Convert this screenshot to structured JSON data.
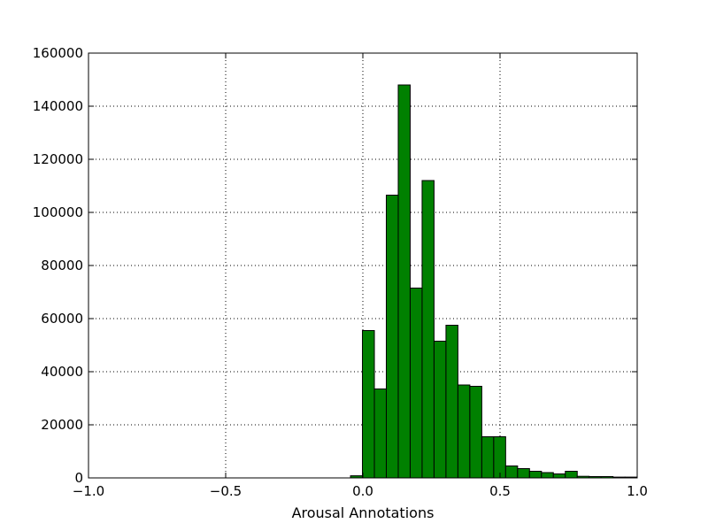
{
  "chart_data": {
    "type": "bar",
    "title": "",
    "xlabel": "Arousal Annotations",
    "ylabel": "",
    "xlim": [
      -1.0,
      1.0
    ],
    "ylim": [
      0,
      160000
    ],
    "x_ticks": [
      -1.0,
      -0.5,
      0.0,
      0.5,
      1.0
    ],
    "x_tick_labels": [
      "−1.0",
      "−0.5",
      "0.0",
      "0.5",
      "1.0"
    ],
    "y_ticks": [
      0,
      20000,
      40000,
      60000,
      80000,
      100000,
      120000,
      140000,
      160000
    ],
    "y_tick_labels": [
      "0",
      "20000",
      "40000",
      "60000",
      "80000",
      "100000",
      "120000",
      "140000",
      "160000"
    ],
    "grid": true,
    "bar_color": "#008000",
    "edge_color": "#000000",
    "bin_width": 0.0435,
    "bin_starts": [
      -0.045,
      -0.0015,
      0.042,
      0.0855,
      0.129,
      0.1725,
      0.216,
      0.2595,
      0.303,
      0.3465,
      0.39,
      0.4335,
      0.477,
      0.5205,
      0.564,
      0.6075,
      0.651,
      0.6945,
      0.738,
      0.7815,
      0.825,
      0.8685,
      0.912,
      0.9555
    ],
    "values": [
      800,
      55500,
      33500,
      106500,
      148000,
      71500,
      112000,
      51500,
      57500,
      35000,
      34500,
      15500,
      15500,
      4500,
      3500,
      2500,
      2000,
      1500,
      2500,
      600,
      500,
      500,
      300,
      300
    ]
  }
}
